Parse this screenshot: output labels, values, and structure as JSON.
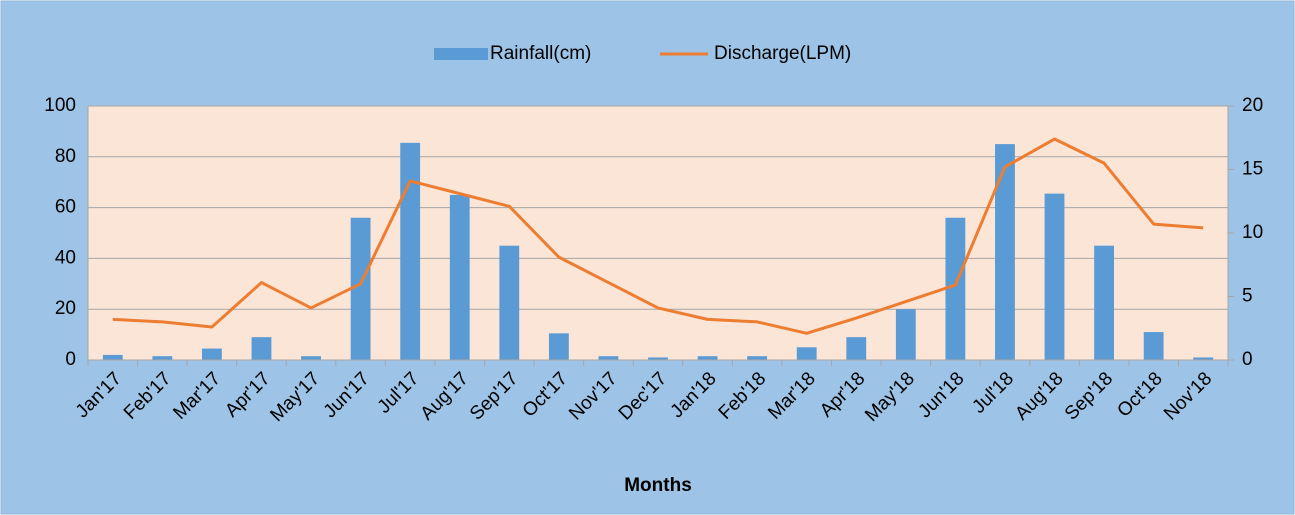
{
  "chart_data": {
    "type": "bar_line",
    "x_label": "Months",
    "categories": [
      "Jan'17",
      "Feb'17",
      "Mar'17",
      "Apr'17",
      "May'17",
      "Jun'17",
      "Jul'17",
      "Aug'17",
      "Sep'17",
      "Oct'17",
      "Nov'17",
      "Dec'17",
      "Jan'18",
      "Feb'18",
      "Mar'18",
      "Apr'18",
      "May'18",
      "Jun'18",
      "Jul'18",
      "Aug'18",
      "Sep'18",
      "Oct'18",
      "Nov'18"
    ],
    "series": [
      {
        "name": "Rainfall(cm)",
        "type": "bar",
        "color": "#5b9bd5",
        "values": [
          2,
          1.5,
          4.5,
          9,
          1.5,
          56,
          85.5,
          65,
          45,
          10.5,
          1.5,
          1,
          1.5,
          1.5,
          5,
          9,
          20,
          56,
          85,
          65.5,
          45,
          11,
          1
        ]
      },
      {
        "name": "Discharge(LPM)",
        "type": "line",
        "axis": "y2",
        "color": "#ed7d31",
        "values": [
          3.2,
          3.0,
          2.6,
          6.1,
          4.1,
          6.0,
          14.1,
          13.1,
          12.1,
          8.1,
          6.1,
          4.1,
          3.2,
          3.0,
          2.1,
          3.3,
          4.6,
          5.9,
          15.2,
          17.4,
          15.5,
          10.7,
          10.4
        ]
      }
    ],
    "ylim": [
      0,
      100
    ],
    "yticks": [
      0,
      20,
      40,
      60,
      80,
      100
    ],
    "y2lim": [
      0,
      20
    ],
    "y2ticks": [
      0,
      5,
      10,
      15,
      20
    ],
    "grid": true,
    "legend": "top"
  }
}
